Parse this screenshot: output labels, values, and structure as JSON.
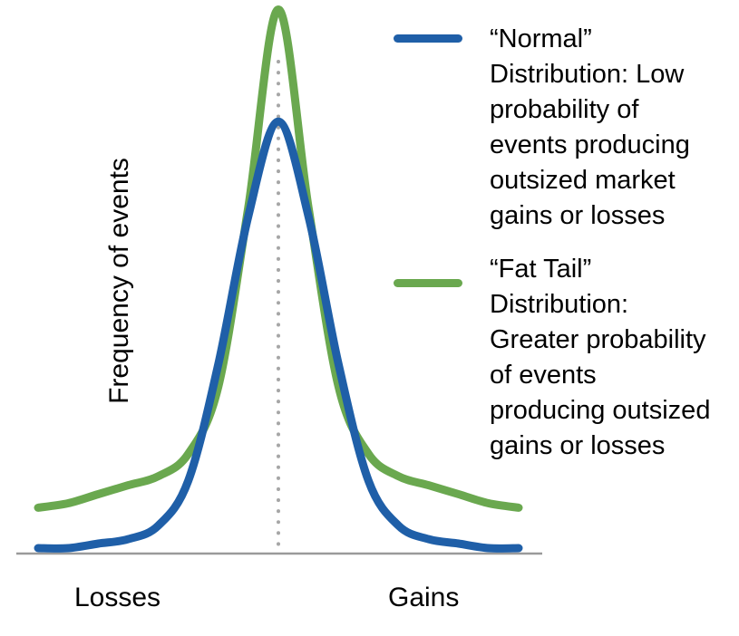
{
  "chart_data": {
    "type": "line",
    "title": "",
    "ylabel": "Frequency of events",
    "xlabels": {
      "left": "Losses",
      "right": "Gains"
    },
    "xlim": [
      -4,
      4
    ],
    "ylim": [
      0,
      1.1
    ],
    "grid": false,
    "center_reference_line": {
      "x": 0,
      "style": "dotted",
      "color": "#a6a6a6"
    },
    "legend_placement": "right",
    "series": [
      {
        "name": "“Normal” Distribution: Low probability of events producing outsized market gains or losses",
        "color": "#1f5fa8",
        "x": [
          -4.0,
          -3.5,
          -3.0,
          -2.5,
          -2.0,
          -1.5,
          -1.0,
          -0.5,
          0.0,
          0.5,
          1.0,
          1.5,
          2.0,
          2.5,
          3.0,
          3.5,
          4.0
        ],
        "values": [
          0.0,
          0.0,
          0.01,
          0.02,
          0.05,
          0.15,
          0.41,
          0.74,
          0.95,
          0.74,
          0.41,
          0.15,
          0.05,
          0.02,
          0.01,
          0.0,
          0.0
        ]
      },
      {
        "name": "“Fat Tail” Distribution: Greater probability of events producing outsized gains or losses",
        "color": "#6aa84f",
        "x": [
          -4.0,
          -3.5,
          -3.0,
          -2.5,
          -2.0,
          -1.5,
          -1.0,
          -0.5,
          0.0,
          0.5,
          1.0,
          1.5,
          2.0,
          2.5,
          3.0,
          3.5,
          4.0
        ],
        "values": [
          0.09,
          0.1,
          0.12,
          0.14,
          0.16,
          0.21,
          0.36,
          0.76,
          1.2,
          0.76,
          0.36,
          0.21,
          0.16,
          0.14,
          0.12,
          0.1,
          0.09
        ]
      }
    ]
  },
  "legend": {
    "normal": "“Normal”\nDistribution: Low\nprobability of\nevents producing\noutsized market\ngains or losses",
    "fat_tail": "“Fat Tail”\nDistribution:\nGreater probability\nof events\nproducing outsized\ngains or losses"
  },
  "colors": {
    "normal": "#1f5fa8",
    "fat_tail": "#6aa84f",
    "axis": "#9a9a9a",
    "reference_line": "#a6a6a6"
  }
}
